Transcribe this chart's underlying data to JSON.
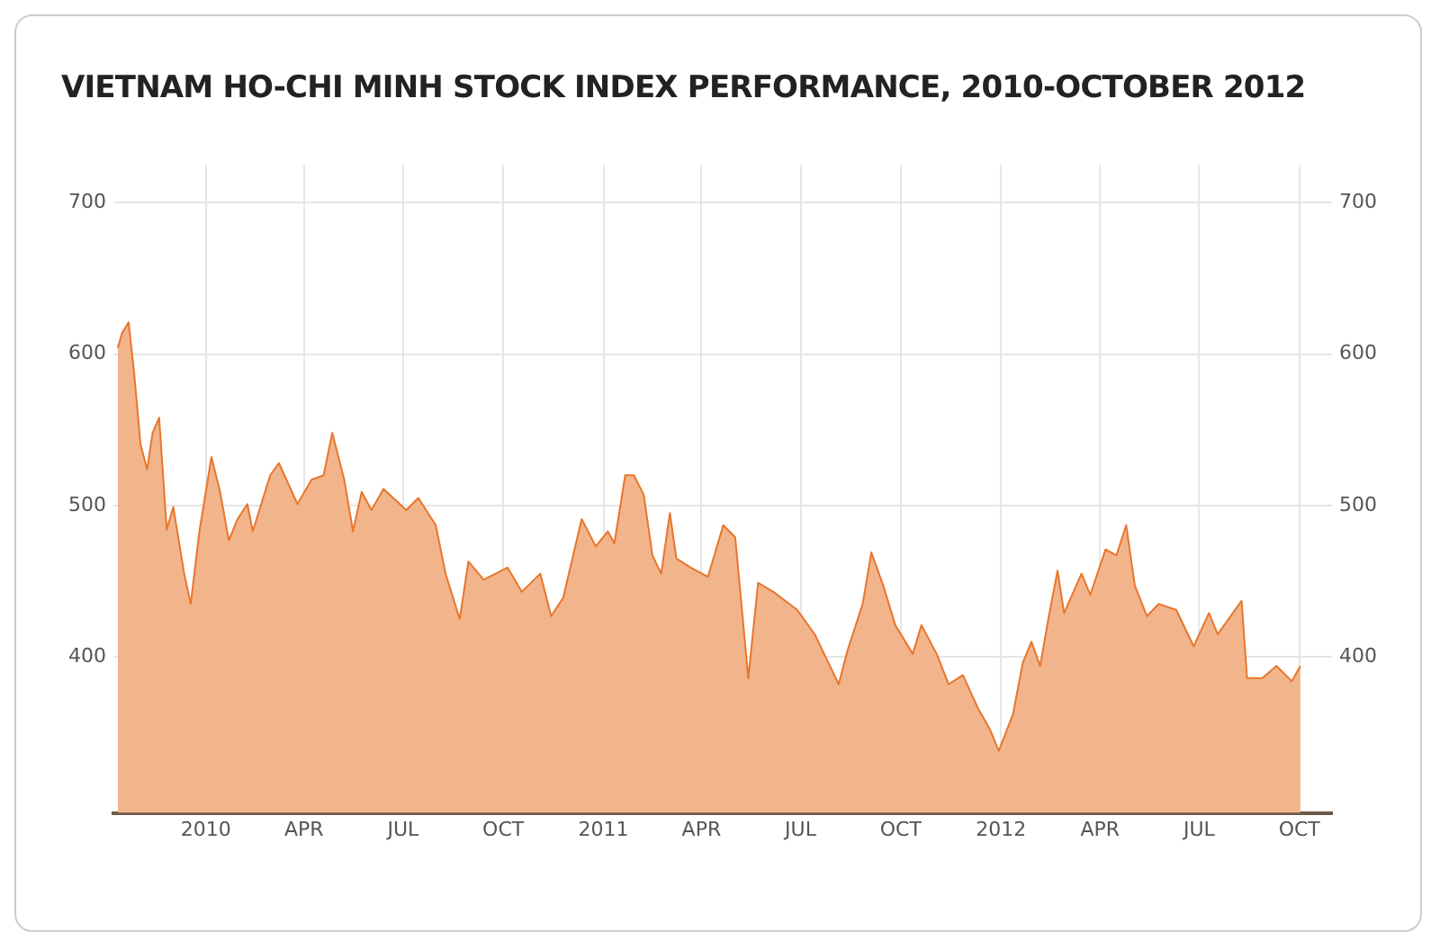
{
  "chart_data": {
    "type": "area",
    "title": "VIETNAM HO-CHI MINH STOCK INDEX PERFORMANCE, 2010-OCTOBER 2012",
    "x": [
      "2009-10-12",
      "2009-10-16",
      "2009-10-22",
      "2009-10-27",
      "2009-11-02",
      "2009-11-08",
      "2009-11-13",
      "2009-11-19",
      "2009-11-26",
      "2009-12-02",
      "2009-12-12",
      "2009-12-18",
      "2009-12-26",
      "2010-01-06",
      "2010-01-14",
      "2010-01-22",
      "2010-01-30",
      "2010-02-08",
      "2010-02-13",
      "2010-03-01",
      "2010-03-09",
      "2010-03-26",
      "2010-04-08",
      "2010-04-19",
      "2010-04-27",
      "2010-05-08",
      "2010-05-16",
      "2010-05-24",
      "2010-06-02",
      "2010-06-13",
      "2010-07-04",
      "2010-07-15",
      "2010-07-31",
      "2010-08-09",
      "2010-08-22",
      "2010-08-30",
      "2010-09-13",
      "2010-10-05",
      "2010-10-18",
      "2010-11-04",
      "2010-11-14",
      "2010-11-25",
      "2010-12-12",
      "2010-12-25",
      "2011-01-05",
      "2011-01-11",
      "2011-01-21",
      "2011-01-29",
      "2011-02-07",
      "2011-02-15",
      "2011-02-23",
      "2011-03-03",
      "2011-03-09",
      "2011-03-22",
      "2011-04-07",
      "2011-04-21",
      "2011-05-02",
      "2011-05-14",
      "2011-05-23",
      "2011-06-06",
      "2011-06-28",
      "2011-07-14",
      "2011-07-28",
      "2011-08-05",
      "2011-08-13",
      "2011-08-27",
      "2011-09-04",
      "2011-09-15",
      "2011-09-26",
      "2011-10-12",
      "2011-10-20",
      "2011-11-03",
      "2011-11-14",
      "2011-11-27",
      "2011-12-11",
      "2011-12-22",
      "2011-12-30",
      "2012-01-12",
      "2012-01-21",
      "2012-01-29",
      "2012-02-06",
      "2012-02-14",
      "2012-02-22",
      "2012-02-28",
      "2012-03-15",
      "2012-03-23",
      "2012-04-06",
      "2012-04-16",
      "2012-04-25",
      "2012-05-03",
      "2012-05-14",
      "2012-05-25",
      "2012-06-10",
      "2012-06-26",
      "2012-07-10",
      "2012-07-18",
      "2012-08-09",
      "2012-08-14",
      "2012-08-28",
      "2012-09-10",
      "2012-09-24",
      "2012-10-02"
    ],
    "series": [
      {
        "color": "#e8762c",
        "values": [
          604,
          614,
          621,
          588,
          540,
          524,
          548,
          558,
          484,
          499,
          455,
          435,
          483,
          532,
          509,
          477,
          491,
          501,
          483,
          520,
          528,
          501,
          517,
          520,
          548,
          517,
          483,
          509,
          497,
          511,
          497,
          505,
          487,
          455,
          425,
          463,
          451,
          459,
          443,
          455,
          427,
          439,
          491,
          473,
          483,
          475,
          520,
          520,
          507,
          467,
          455,
          495,
          465,
          459,
          453,
          487,
          479,
          386,
          449,
          443,
          431,
          415,
          394,
          382,
          404,
          435,
          469,
          447,
          421,
          402,
          421,
          402,
          382,
          388,
          366,
          352,
          338,
          362,
          396,
          410,
          394,
          427,
          457,
          429,
          455,
          441,
          471,
          467,
          487,
          447,
          427,
          435,
          431,
          407,
          429,
          415,
          437,
          386,
          386,
          394,
          384,
          394
        ]
      }
    ],
    "xlim": [
      "2009-10-08",
      "2012-10-31"
    ],
    "xticks": [
      {
        "value": "2010-01-01",
        "label": "2010"
      },
      {
        "value": "2010-04-01",
        "label": "APR"
      },
      {
        "value": "2010-07-01",
        "label": "JUL"
      },
      {
        "value": "2010-10-01",
        "label": "OCT"
      },
      {
        "value": "2011-01-01",
        "label": "2011"
      },
      {
        "value": "2011-04-01",
        "label": "APR"
      },
      {
        "value": "2011-07-01",
        "label": "JUL"
      },
      {
        "value": "2011-10-01",
        "label": "OCT"
      },
      {
        "value": "2012-01-01",
        "label": "2012"
      },
      {
        "value": "2012-04-01",
        "label": "APR"
      },
      {
        "value": "2012-07-01",
        "label": "JUL"
      },
      {
        "value": "2012-10-01",
        "label": "OCT"
      }
    ],
    "ylim": [
      297,
      725
    ],
    "yticks": [
      400,
      500,
      600,
      700
    ],
    "y2lim": [
      297,
      725
    ],
    "y2ticks": [
      400,
      500,
      600,
      700
    ],
    "grid": true,
    "legend": false,
    "marker": "none",
    "line_style": "solid"
  }
}
